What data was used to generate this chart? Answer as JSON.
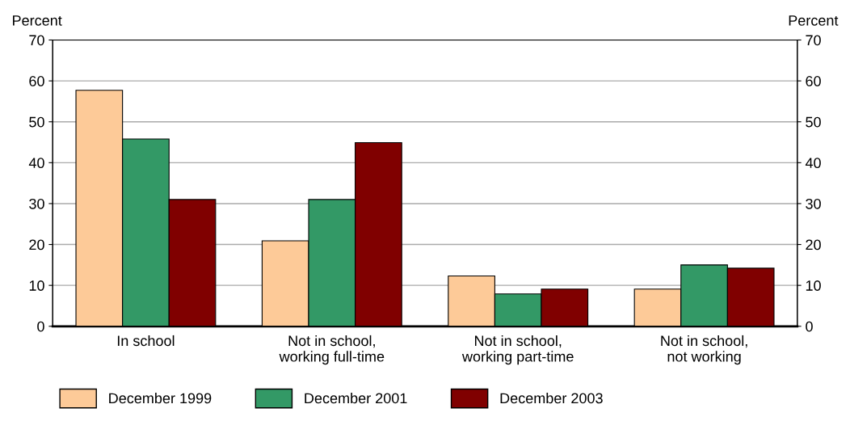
{
  "chart_data": {
    "type": "bar",
    "ylabel": "Percent",
    "y2label": "Percent",
    "categories": [
      "In school",
      "Not in school,\nworking full-time",
      "Not in school,\nworking part-time",
      "Not in school,\nnot working"
    ],
    "series": [
      {
        "name": "December 1999",
        "color": "#fdca98",
        "values": [
          57.7,
          20.9,
          12.3,
          9.1
        ]
      },
      {
        "name": "December 2001",
        "color": "#339966",
        "values": [
          45.8,
          31.0,
          7.9,
          15.0
        ]
      },
      {
        "name": "December 2003",
        "color": "#800000",
        "values": [
          31.0,
          44.9,
          9.1,
          14.2
        ]
      }
    ],
    "ylim": [
      0,
      70
    ],
    "yticks": [
      0,
      10,
      20,
      30,
      40,
      50,
      60,
      70
    ],
    "y2lim": [
      0,
      70
    ],
    "y2ticks": [
      0,
      10,
      20,
      30,
      40,
      50,
      60,
      70
    ],
    "grid": "y",
    "legend": "bottom left"
  }
}
